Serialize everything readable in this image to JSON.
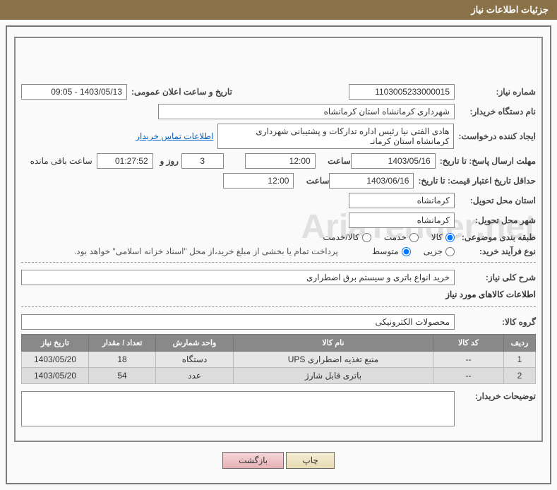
{
  "title": "جزئیات اطلاعات نیاز",
  "labels": {
    "need_no": "شماره نیاز:",
    "announce": "تاریخ و ساعت اعلان عمومی:",
    "buyer_org": "نام دستگاه خریدار:",
    "requester": "ایجاد کننده درخواست:",
    "contact_link": "اطلاعات تماس خریدار",
    "reply_deadline": "مهلت ارسال پاسخ: تا تاریخ:",
    "time_lbl": "ساعت",
    "days_and": "روز و",
    "remaining": "ساعت باقی مانده",
    "price_valid": "حداقل تاریخ اعتبار قیمت: تا تاریخ:",
    "deliver_prov": "استان محل تحویل:",
    "deliver_city": "شهر محل تحویل:",
    "category": "طبقه بندی موضوعی:",
    "buy_type": "نوع فرآیند خرید:",
    "pay_note": "پرداخت تمام یا بخشی از مبلغ خرید،از محل \"اسناد خزانه اسلامی\" خواهد بود.",
    "need_desc": "شرح کلی نیاز:",
    "items_head": "اطلاعات کالاهای مورد نیاز",
    "group": "گروه کالا:",
    "buyer_notes": "توضیحات خریدار:"
  },
  "fields": {
    "need_no": "1103005233000015",
    "announce": "1403/05/13 - 09:05",
    "buyer_org": "شهرداری کرمانشاه استان کرمانشاه",
    "requester": "هادی الفتی نیا رئیس اداره تدارکات و پشتیبانی شهرداری کرمانشاه استان کرمانـ",
    "reply_date": "1403/05/16",
    "reply_time": "12:00",
    "days_left": "3",
    "remain_time": "01:27:52",
    "price_date": "1403/06/16",
    "price_time": "12:00",
    "province": "کرمانشاه",
    "city": "کرمانشاه",
    "need_desc": "خرید انواع باتری و سیستم برق اضطراری",
    "group": "محصولات الکترونیکی"
  },
  "radios": {
    "cat": [
      "کالا",
      "خدمت",
      "کالا/خدمت"
    ],
    "buy": [
      "جزیی",
      "متوسط"
    ]
  },
  "table": {
    "headers": [
      "ردیف",
      "کد کالا",
      "نام کالا",
      "واحد شمارش",
      "تعداد / مقدار",
      "تاریخ نیاز"
    ],
    "rows": [
      [
        "1",
        "--",
        "منبع تغذیه اضطراری UPS",
        "دستگاه",
        "18",
        "1403/05/20"
      ],
      [
        "2",
        "--",
        "باتری قابل شارژ",
        "عدد",
        "54",
        "1403/05/20"
      ]
    ]
  },
  "buttons": {
    "print": "چاپ",
    "back": "بازگشت"
  },
  "watermark": "AriaTender.net"
}
